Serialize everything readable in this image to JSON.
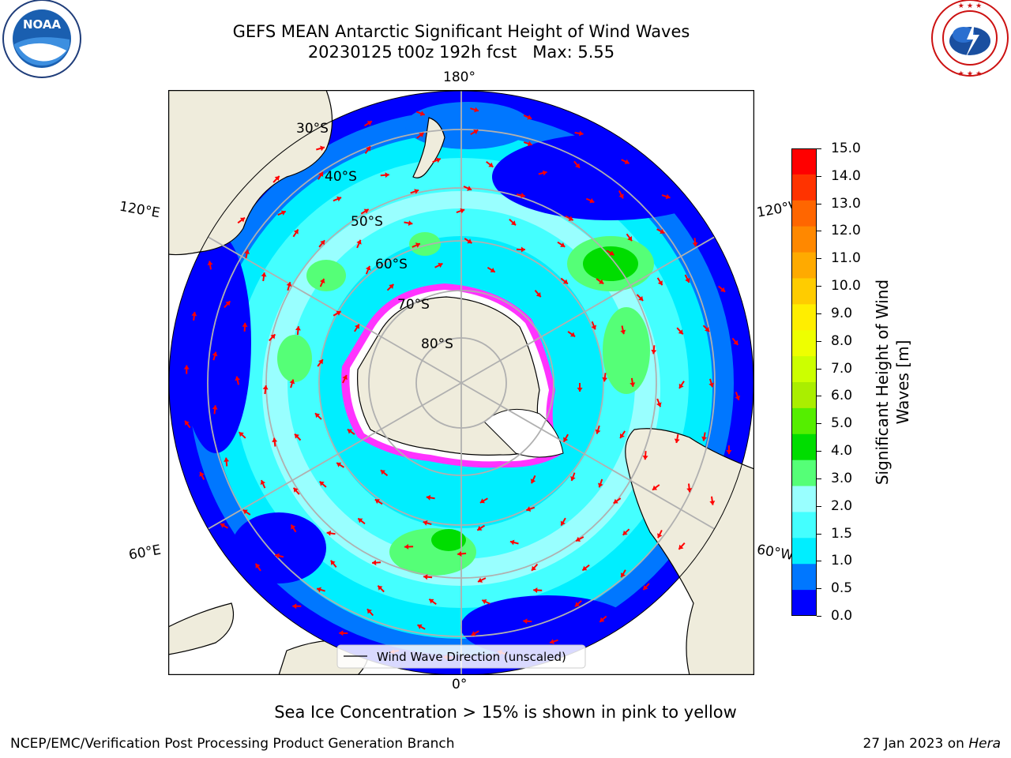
{
  "title": {
    "line1": "GEFS MEAN Antarctic Significant Height of Wind Waves",
    "line2": "20230125 t00z 192h fcst   Max: 5.55"
  },
  "logos": {
    "left": "NOAA",
    "left_ring_text": "NATIONAL OCEANIC AND ATMOSPHERIC ADMINISTRATION · U.S. DEPARTMENT OF COMMERCE",
    "right_ring_text": "NATIONAL WEATHER SERVICE"
  },
  "map": {
    "projection": "south-polar-stereographic",
    "longitude_labels": {
      "top": "180°",
      "bottom": "0°",
      "left_upper": "120°E",
      "left_lower": "60°E",
      "right_upper": "120°W",
      "right_lower": "60°W"
    },
    "latitude_labels": [
      "30°S",
      "40°S",
      "50°S",
      "60°S",
      "70°S",
      "80°S"
    ],
    "legend": "Wind Wave Direction (unscaled)",
    "colors": {
      "land": "#efecdc",
      "coast": "#000000",
      "grid": "#b0b0b0",
      "arrows": "#ff0000",
      "sea_ice": "#ff33ff"
    }
  },
  "colorbar": {
    "label": "Significant Height of Wind\nWaves [m]",
    "ticks": [
      "15.0",
      "14.0",
      "13.0",
      "12.0",
      "11.0",
      "10.0",
      "9.0",
      "8.0",
      "7.0",
      "6.0",
      "5.0",
      "4.0",
      "3.0",
      "2.0",
      "1.5",
      "1.0",
      "0.5",
      "0.0"
    ],
    "colors": [
      "#ff0000",
      "#ff3300",
      "#ff6600",
      "#ff8800",
      "#ffaa00",
      "#ffcc00",
      "#ffee00",
      "#eeff00",
      "#ccff00",
      "#aaee00",
      "#55ee00",
      "#00dd00",
      "#55ff77",
      "#99ffff",
      "#44ffff",
      "#00eeff",
      "#0077ff",
      "#0000ff"
    ]
  },
  "subtitle": "Sea Ice Concentration > 15% is shown in pink to yellow",
  "footer": {
    "left": "NCEP/EMC/Verification Post Processing Product Generation Branch",
    "right_prefix": "27 Jan 2023 on ",
    "right_host": "Hera"
  }
}
